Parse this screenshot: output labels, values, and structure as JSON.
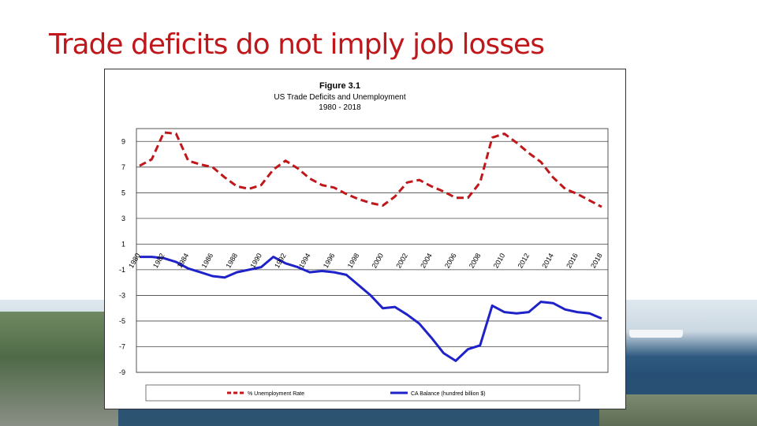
{
  "slide": {
    "title": "Trade deficits do not imply job losses"
  },
  "chart_data": {
    "type": "line",
    "title": "Figure 3.1",
    "subtitle_line1": "US Trade Deficits and Unemployment",
    "subtitle_line2": "1980 - 2018",
    "x": [
      1980,
      1981,
      1982,
      1983,
      1984,
      1985,
      1986,
      1987,
      1988,
      1989,
      1990,
      1991,
      1992,
      1993,
      1994,
      1995,
      1996,
      1997,
      1998,
      1999,
      2000,
      2001,
      2002,
      2003,
      2004,
      2005,
      2006,
      2007,
      2008,
      2009,
      2010,
      2011,
      2012,
      2013,
      2014,
      2015,
      2016,
      2017,
      2018
    ],
    "x_tick_labels": [
      "1980",
      "1982",
      "1984",
      "1986",
      "1988",
      "1990",
      "1992",
      "1994",
      "1996",
      "1998",
      "2000",
      "2002",
      "2004",
      "2006",
      "2008",
      "2010",
      "2012",
      "2014",
      "2016",
      "2018"
    ],
    "y_ticks": [
      9,
      7,
      5,
      3,
      1,
      -1,
      -3,
      -5,
      -7,
      -9
    ],
    "ylim": [
      -9,
      10
    ],
    "grid": true,
    "legend_position": "bottom",
    "series": [
      {
        "name": "% Unemployment Rate",
        "color": "#c0171b",
        "style": "dashed",
        "values": [
          7.1,
          7.6,
          9.7,
          9.6,
          7.5,
          7.2,
          7.0,
          6.2,
          5.5,
          5.3,
          5.6,
          6.8,
          7.5,
          6.9,
          6.1,
          5.6,
          5.4,
          4.9,
          4.5,
          4.2,
          4.0,
          4.7,
          5.8,
          6.0,
          5.5,
          5.1,
          4.6,
          4.6,
          5.8,
          9.3,
          9.6,
          8.9,
          8.1,
          7.4,
          6.2,
          5.3,
          4.9,
          4.4,
          3.9
        ]
      },
      {
        "name": "CA Balance (hundred billion $)",
        "color": "#1e22c8",
        "style": "solid",
        "values": [
          0.0,
          0.0,
          -0.1,
          -0.4,
          -0.9,
          -1.2,
          -1.5,
          -1.6,
          -1.2,
          -1.0,
          -0.8,
          0.0,
          -0.5,
          -0.8,
          -1.2,
          -1.1,
          -1.2,
          -1.4,
          -2.2,
          -3.0,
          -4.0,
          -3.9,
          -4.5,
          -5.2,
          -6.3,
          -7.5,
          -8.1,
          -7.2,
          -6.9,
          -3.8,
          -4.3,
          -4.4,
          -4.3,
          -3.5,
          -3.6,
          -4.1,
          -4.3,
          -4.4,
          -4.8
        ]
      }
    ]
  }
}
